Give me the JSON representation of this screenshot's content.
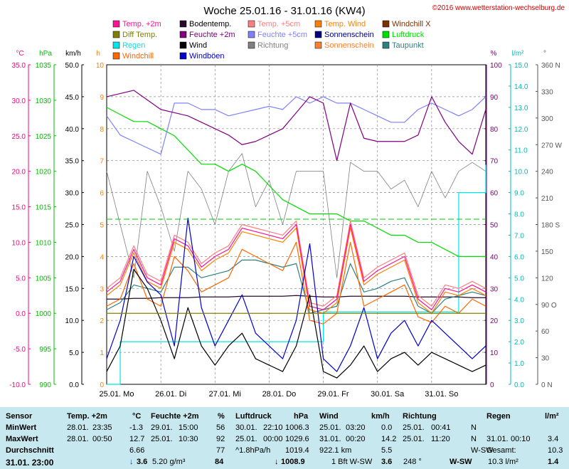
{
  "title": "Woche 25.01.16 - 31.01.16 (KW4)",
  "copyright": "©2016 www.wetterstation-wechselburg.de",
  "legend": [
    {
      "label": "Temp. +2m",
      "color": "#ff1493",
      "kind": "box"
    },
    {
      "label": "Bodentemp.",
      "color": "#2a0a2a",
      "kind": "box"
    },
    {
      "label": "Temp. +5cm",
      "color": "#ff7f7f",
      "kind": "box"
    },
    {
      "label": "Temp. Wind",
      "color": "#ff8000",
      "kind": "box"
    },
    {
      "label": "Windchill X",
      "color": "#7a3000",
      "kind": "box"
    },
    {
      "label": "Diff Temp.",
      "color": "#808000",
      "kind": "box"
    },
    {
      "label": "Feuchte +2m",
      "color": "#800080",
      "kind": "box"
    },
    {
      "label": "Feuchte +5cm",
      "color": "#8080ff",
      "kind": "box"
    },
    {
      "label": "Sonnenschein",
      "color": "#000080",
      "kind": "box"
    },
    {
      "label": "Luftdruck",
      "color": "#00dd00",
      "kind": "box"
    },
    {
      "label": "Regen",
      "color": "#00e5e5",
      "kind": "box"
    },
    {
      "label": "Wind",
      "color": "#000000",
      "kind": "box"
    },
    {
      "label": "Richtung",
      "color": "#808080",
      "kind": "box"
    },
    {
      "label": "Sonnenschein",
      "color": "#ff8030",
      "kind": "box"
    },
    {
      "label": "Taupunkt",
      "color": "#308080",
      "kind": "box"
    },
    {
      "label": "Windchill",
      "color": "#ff6600",
      "kind": "box"
    },
    {
      "label": "Windböen",
      "color": "#0000cc",
      "kind": "box"
    }
  ],
  "axes": {
    "celsius": {
      "unit": "°C",
      "color": "#ff0080",
      "ticks": [
        "35.0",
        "30.0",
        "25.0",
        "20.0",
        "15.0",
        "10.0",
        "5.0",
        "0.0",
        "-5.0",
        "-10.0"
      ]
    },
    "hpa": {
      "unit": "hPa",
      "color": "#00bb00",
      "ticks": [
        "1035",
        "1030",
        "1025",
        "1020",
        "1015",
        "1010",
        "1005",
        "1000",
        "995",
        "990"
      ]
    },
    "kmh": {
      "unit": "km/h",
      "color": "#000000",
      "ticks": [
        "50.0",
        "45.0",
        "40.0",
        "35.0",
        "30.0",
        "25.0",
        "20.0",
        "15.0",
        "10.0",
        "5.0",
        "0.0"
      ]
    },
    "hours": {
      "unit": "h",
      "color": "#ff8000",
      "ticks": [
        "10",
        "9",
        "8",
        "7",
        "6",
        "5",
        "4",
        "3",
        "2",
        "1",
        "0"
      ]
    },
    "percent": {
      "unit": "%",
      "color": "#800080",
      "ticks": [
        "100",
        "90",
        "80",
        "70",
        "60",
        "50",
        "40",
        "30",
        "20",
        "10",
        "0"
      ]
    },
    "rain": {
      "unit": "l/m²",
      "color": "#00bbbb",
      "ticks": [
        "15.0",
        "14.0",
        "13.0",
        "12.0",
        "11.0",
        "10.0",
        "9.0",
        "8.0",
        "7.0",
        "6.0",
        "5.0",
        "4.0",
        "3.0",
        "2.0",
        "1.0",
        "0.0"
      ]
    },
    "direction": {
      "unit": "°",
      "color": "#555555",
      "ticks": [
        "360 N",
        "330",
        "300",
        "270 W",
        "240",
        "210",
        "180 S",
        "150",
        "120",
        "90 O",
        "60",
        "30",
        "0 N"
      ]
    }
  },
  "x_labels": [
    "25.01. Mo",
    "26.01. Di",
    "27.01. Mi",
    "28.01. Do",
    "29.01. Fr",
    "30.01. Sa",
    "31.01. So"
  ],
  "chart_data": {
    "type": "line",
    "title": "Woche 25.01.16 - 31.01.16 (KW4)",
    "x": [
      0,
      0.25,
      0.5,
      0.75,
      1,
      1.25,
      1.5,
      1.75,
      2,
      2.25,
      2.5,
      2.75,
      3,
      3.25,
      3.5,
      3.75,
      4,
      4.25,
      4.5,
      4.75,
      5,
      5.25,
      5.5,
      5.75,
      6,
      6.25,
      6.5,
      6.75,
      7
    ],
    "x_unit": "days since 25.01. 00:00",
    "series": [
      {
        "name": "Temp. +2m",
        "axis": "celsius",
        "color": "#ff1493",
        "values": [
          3.0,
          4.5,
          9.0,
          5.0,
          4.0,
          10.5,
          9.5,
          6.5,
          8.0,
          9.0,
          12.0,
          11.5,
          11.0,
          10.5,
          12.5,
          1.0,
          0.5,
          2.0,
          12.5,
          4.5,
          6.0,
          7.0,
          8.0,
          2.0,
          0.5,
          3.5,
          3.0,
          4.0,
          3.0
        ]
      },
      {
        "name": "Temp. +5cm",
        "axis": "celsius",
        "color": "#ff7f7f",
        "values": [
          3.5,
          5.0,
          9.5,
          5.5,
          4.5,
          11.0,
          10.0,
          7.0,
          8.5,
          9.5,
          12.5,
          12.0,
          11.5,
          11.0,
          13.0,
          1.5,
          1.0,
          2.5,
          13.0,
          5.0,
          6.5,
          7.5,
          8.5,
          2.5,
          1.0,
          4.0,
          3.5,
          4.5,
          3.5
        ]
      },
      {
        "name": "Temp. Wind",
        "axis": "celsius",
        "color": "#ff8000",
        "values": [
          2.5,
          4.0,
          8.5,
          4.5,
          3.5,
          10.0,
          9.0,
          6.0,
          7.5,
          8.5,
          11.5,
          11.0,
          10.5,
          10.0,
          12.0,
          0.5,
          0.0,
          1.5,
          12.0,
          4.0,
          5.5,
          6.5,
          7.5,
          1.5,
          0.0,
          3.0,
          2.5,
          3.5,
          2.5
        ]
      },
      {
        "name": "Windchill",
        "axis": "celsius",
        "color": "#ff6600",
        "values": [
          1.0,
          2.0,
          7.0,
          2.0,
          1.0,
          8.0,
          6.0,
          3.0,
          4.0,
          5.0,
          9.0,
          8.0,
          7.0,
          6.0,
          10.0,
          -1.0,
          -1.5,
          0.0,
          10.0,
          1.0,
          2.0,
          3.0,
          4.0,
          -0.5,
          -1.3,
          1.0,
          0.0,
          2.0,
          1.0
        ]
      },
      {
        "name": "Taupunkt",
        "axis": "celsius",
        "color": "#308080",
        "values": [
          0.5,
          1.5,
          4.0,
          3.5,
          3.0,
          6.5,
          6.5,
          5.0,
          5.5,
          6.0,
          7.5,
          7.5,
          7.0,
          6.5,
          7.0,
          0.0,
          0.5,
          1.0,
          7.0,
          3.0,
          3.5,
          4.5,
          5.0,
          1.0,
          0.0,
          2.0,
          2.5,
          3.0,
          2.5
        ]
      },
      {
        "name": "Bodentemp.",
        "axis": "celsius",
        "color": "#2a0a2a",
        "values": [
          2.0,
          2.0,
          2.1,
          2.1,
          2.2,
          2.2,
          2.2,
          2.3,
          2.3,
          2.3,
          2.4,
          2.4,
          2.4,
          2.4,
          2.5,
          2.4,
          2.3,
          2.3,
          2.4,
          2.4,
          2.4,
          2.4,
          2.4,
          2.3,
          2.3,
          2.3,
          2.3,
          2.2,
          2.2
        ]
      },
      {
        "name": "Feuchte +2m",
        "axis": "percent",
        "color": "#800080",
        "values": [
          90,
          91,
          92,
          89,
          86,
          85,
          84,
          82,
          80,
          78,
          75,
          76,
          78,
          80,
          85,
          90,
          88,
          70,
          88,
          77,
          76,
          76,
          76,
          78,
          90,
          82,
          76,
          72,
          86
        ]
      },
      {
        "name": "Feuchte +5cm",
        "axis": "percent",
        "color": "#8080ff",
        "values": [
          84,
          78,
          76,
          74,
          72,
          88,
          88,
          86,
          86,
          84,
          85,
          86,
          87,
          86,
          90,
          88,
          90,
          88,
          88,
          86,
          84,
          82,
          82,
          86,
          88,
          86,
          84,
          86,
          90
        ]
      },
      {
        "name": "Luftdruck",
        "axis": "hpa",
        "color": "#00dd00",
        "values": [
          1029,
          1028,
          1027,
          1027,
          1026,
          1025,
          1023,
          1021,
          1021,
          1020,
          1021,
          1020,
          1018,
          1016,
          1015,
          1014,
          1014,
          1014,
          1013,
          1013,
          1012,
          1011,
          1011,
          1010,
          1010,
          1009,
          1008,
          1008,
          1008
        ]
      },
      {
        "name": "Wind",
        "axis": "kmh",
        "color": "#000000",
        "values": [
          2,
          6,
          18,
          15,
          10,
          4,
          12,
          6,
          3,
          6,
          8,
          4,
          3,
          2,
          6,
          14,
          2,
          1,
          3,
          6,
          2,
          4,
          5,
          3,
          5,
          4,
          3,
          2,
          3
        ]
      },
      {
        "name": "Windböen",
        "axis": "kmh",
        "color": "#0000cc",
        "values": [
          4,
          10,
          20,
          16,
          14,
          6,
          26,
          12,
          6,
          10,
          14,
          8,
          6,
          4,
          10,
          22,
          4,
          2,
          6,
          12,
          4,
          8,
          10,
          6,
          10,
          8,
          6,
          4,
          6
        ]
      },
      {
        "name": "Richtung",
        "axis": "direction",
        "color": "#808080",
        "values": [
          240,
          180,
          120,
          240,
          200,
          150,
          240,
          220,
          180,
          240,
          260,
          200,
          230,
          180,
          240,
          240,
          240,
          120,
          250,
          240,
          240,
          220,
          230,
          200,
          240,
          210,
          240,
          250,
          240
        ]
      },
      {
        "name": "Regen",
        "axis": "rain",
        "color": "#00e5e5",
        "values": [
          0,
          2.0,
          2.0,
          2.0,
          2.0,
          2.0,
          2.0,
          2.0,
          2.0,
          2.0,
          2.0,
          2.0,
          2.0,
          2.0,
          2.0,
          2.0,
          3.4,
          3.4,
          3.4,
          3.4,
          3.4,
          3.4,
          3.4,
          3.4,
          3.4,
          3.4,
          9.0,
          9.0,
          10.3
        ]
      },
      {
        "name": "Diff Temp.",
        "axis": "celsius",
        "color": "#808000",
        "values": [
          0,
          0,
          0,
          0,
          0,
          0,
          0,
          0,
          0,
          0,
          0,
          0,
          0,
          0,
          0,
          0,
          0,
          0,
          0,
          0,
          0,
          0,
          0,
          0,
          0,
          0,
          0,
          0,
          0
        ]
      }
    ],
    "reference_lines": [
      {
        "name": "Luftdruck Mittel",
        "axis": "hpa",
        "value": 1013.25,
        "color": "#00cc00",
        "style": "dashed"
      }
    ]
  },
  "table": {
    "header": [
      "Sensor",
      "Temp. +2m",
      "°C",
      "Feuchte +2m",
      "%",
      "Luftdruck",
      "hPa",
      "Wind",
      "km/h",
      "Richtung",
      "Regen",
      "l/m²"
    ],
    "rows": [
      [
        "MinWert",
        "28.01.",
        "23:35",
        "-1.3",
        "29.01.",
        "15:00",
        "56",
        "30.01.",
        "22:10",
        "1006.3",
        "25.01.",
        "03:20",
        "0.0",
        "25.01.",
        "00:41",
        "N",
        "",
        "",
        ""
      ],
      [
        "MaxWert",
        "28.01.",
        "00:50",
        "12.7",
        "25.01.",
        "10:30",
        "92",
        "25.01.",
        "00:00",
        "1029.6",
        "31.01.",
        "00:20",
        "14.2",
        "25.01.",
        "11:20",
        "N",
        "31.01.",
        "00:10",
        "3.4"
      ],
      [
        "Durchschnitt",
        "",
        "",
        "6.66",
        "",
        "",
        "77",
        "^1.8hPa/h",
        "",
        "1019.4",
        "922.1 km",
        "",
        "5.5",
        "",
        "",
        "W-SW",
        "Gesamt:",
        "",
        "10.3"
      ]
    ],
    "current": {
      "label": "31.01. 23:00",
      "temp": "3.6",
      "humid_abs": "5.20 g/m³",
      "humid": "84",
      "pressure": "1008.9",
      "wind_bft": "1 Bft W-SW",
      "wind": "3.6",
      "dir_deg": "248 °",
      "dir": "W-SW",
      "rain": "10.3 l/m²",
      "rain_val": "1.4"
    }
  }
}
